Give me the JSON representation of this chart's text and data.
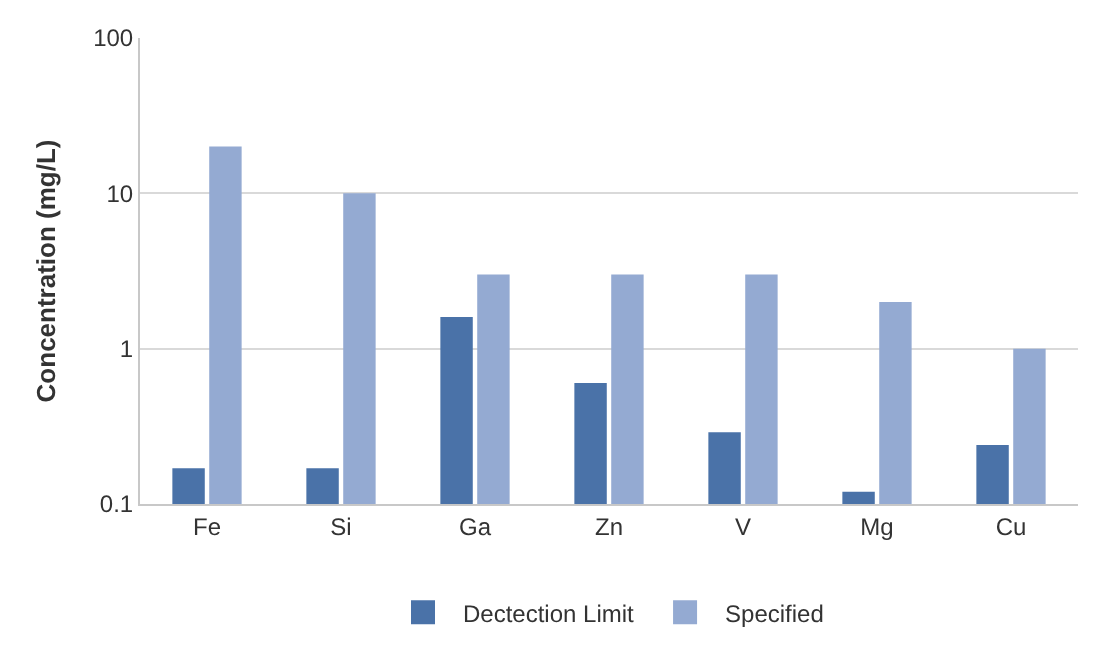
{
  "chart_data": {
    "type": "bar",
    "ylabel": "Concentration (mg/L)",
    "categories": [
      "Fe",
      "Si",
      "Ga",
      "Zn",
      "V",
      "Mg",
      "Cu"
    ],
    "series": [
      {
        "name": "Dectection Limit",
        "color": "#4a72a8",
        "values": [
          0.17,
          0.17,
          1.6,
          0.6,
          0.29,
          0.12,
          0.24
        ]
      },
      {
        "name": "Specified",
        "color": "#94aad2",
        "values": [
          20,
          10,
          3,
          3,
          3,
          2,
          1
        ]
      }
    ],
    "log": "y",
    "ylim": [
      0.1,
      100
    ],
    "yticks": [
      0.1,
      1,
      10,
      100
    ],
    "grid": "y",
    "legend": "bottom"
  }
}
